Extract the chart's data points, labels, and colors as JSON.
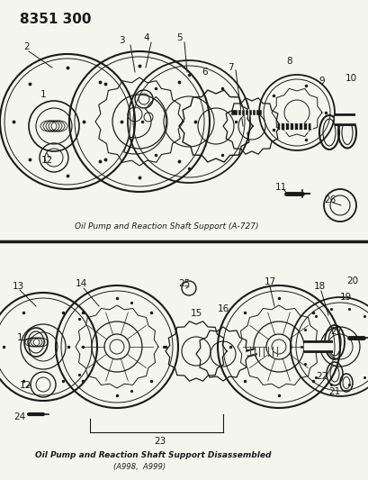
{
  "title": "8351 300",
  "bg_color": "#f5f5f0",
  "line_color": "#1a1a1a",
  "caption1": "Oil Pump and Reaction Shaft Support (A-727)",
  "caption2_line1": "Oil Pump and Reaction Shaft Support Disassembled",
  "caption2_line2": "(A998,  A999)"
}
